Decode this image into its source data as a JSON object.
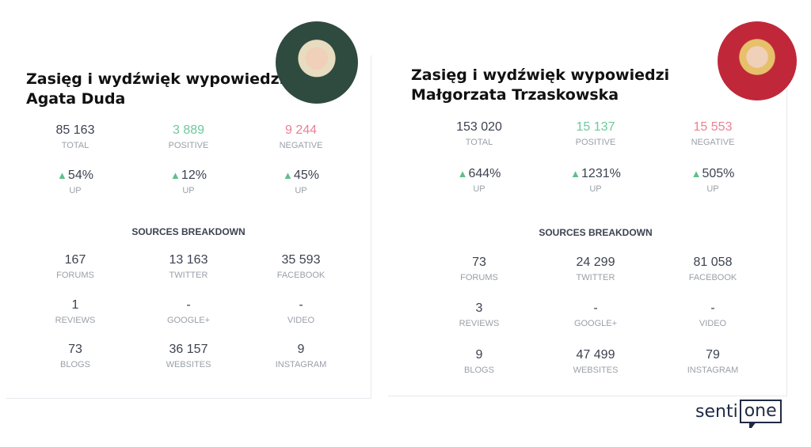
{
  "colors": {
    "positive": "#6cc99a",
    "negative": "#f07e93",
    "neutral": "#3c4250",
    "label": "#9aa0a8"
  },
  "panels": [
    {
      "title_line1": "Zasięg i wydźwięk wypowiedzi",
      "title_line2": "Agata Duda",
      "stats": [
        {
          "value": "85 163",
          "label": "TOTAL",
          "tone": "neutral"
        },
        {
          "value": "3 889",
          "label": "POSITIVE",
          "tone": "positive"
        },
        {
          "value": "9 244",
          "label": "NEGATIVE",
          "tone": "negative"
        }
      ],
      "changes": [
        {
          "icon": "arrow-up-icon",
          "value": "54%",
          "label": "UP"
        },
        {
          "icon": "arrow-up-icon",
          "value": "12%",
          "label": "UP"
        },
        {
          "icon": "arrow-up-icon",
          "value": "45%",
          "label": "UP"
        }
      ],
      "sources_title": "SOURCES BREAKDOWN",
      "sources": [
        {
          "value": "167",
          "label": "FORUMS"
        },
        {
          "value": "13 163",
          "label": "TWITTER"
        },
        {
          "value": "35 593",
          "label": "FACEBOOK"
        },
        {
          "value": "1",
          "label": "REVIEWS"
        },
        {
          "value": "-",
          "label": "GOOGLE+"
        },
        {
          "value": "-",
          "label": "VIDEO"
        },
        {
          "value": "73",
          "label": "BLOGS"
        },
        {
          "value": "36 157",
          "label": "WEBSITES"
        },
        {
          "value": "9",
          "label": "INSTAGRAM"
        }
      ]
    },
    {
      "title_line1": "Zasięg i wydźwięk wypowiedzi",
      "title_line2": "Małgorzata Trzaskowska",
      "stats": [
        {
          "value": "153 020",
          "label": "TOTAL",
          "tone": "neutral"
        },
        {
          "value": "15 137",
          "label": "POSITIVE",
          "tone": "positive"
        },
        {
          "value": "15 553",
          "label": "NEGATIVE",
          "tone": "negative"
        }
      ],
      "changes": [
        {
          "icon": "arrow-up-icon",
          "value": "644%",
          "label": "UP"
        },
        {
          "icon": "arrow-up-icon",
          "value": "1231%",
          "label": "UP"
        },
        {
          "icon": "arrow-up-icon",
          "value": "505%",
          "label": "UP"
        }
      ],
      "sources_title": "SOURCES BREAKDOWN",
      "sources": [
        {
          "value": "73",
          "label": "FORUMS"
        },
        {
          "value": "24 299",
          "label": "TWITTER"
        },
        {
          "value": "81 058",
          "label": "FACEBOOK"
        },
        {
          "value": "3",
          "label": "REVIEWS"
        },
        {
          "value": "-",
          "label": "GOOGLE+"
        },
        {
          "value": "-",
          "label": "VIDEO"
        },
        {
          "value": "9",
          "label": "BLOGS"
        },
        {
          "value": "47 499",
          "label": "WEBSITES"
        },
        {
          "value": "79",
          "label": "INSTAGRAM"
        }
      ]
    }
  ],
  "logo": {
    "text_left": "senti",
    "text_box": "one"
  }
}
